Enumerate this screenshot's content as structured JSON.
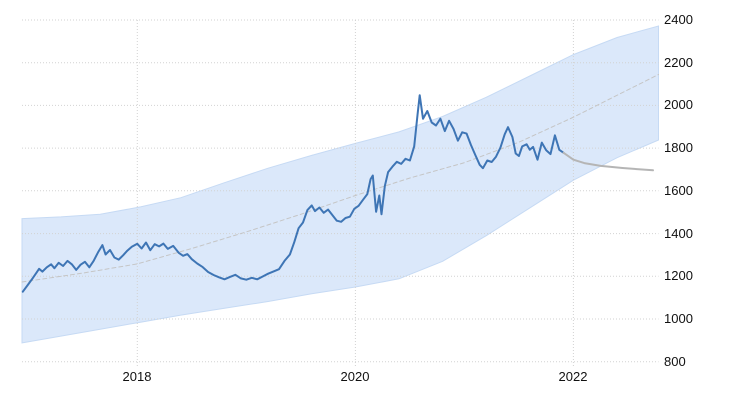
{
  "chart_data": {
    "type": "line",
    "title": "",
    "legend": "none",
    "grid": {
      "visible": true,
      "style": "dotted",
      "color": "#d2d2d2"
    },
    "x_axis": {
      "label": "",
      "range": [
        2016.943,
        2022.78
      ],
      "ticks": [
        2018,
        2020,
        2022
      ],
      "tick_labels": [
        "2018",
        "2020",
        "2022"
      ]
    },
    "y_axis": {
      "label": "",
      "position": "right",
      "range": [
        800,
        2400
      ],
      "ticks": [
        800,
        1000,
        1200,
        1400,
        1600,
        1800,
        2000,
        2200,
        2400
      ],
      "tick_labels": [
        "800",
        "1000",
        "1200",
        "1400",
        "1600",
        "1800",
        "2000",
        "2200",
        "2400"
      ]
    },
    "band": {
      "name": "trend-channel",
      "fill": "#dbe8fa",
      "stroke": "#c6daf4",
      "x": [
        2016.943,
        2017.3,
        2017.66,
        2018.03,
        2018.4,
        2018.8,
        2019.2,
        2019.6,
        2020.0,
        2020.4,
        2020.8,
        2021.2,
        2021.6,
        2022.0,
        2022.4,
        2022.78
      ],
      "top": [
        1470,
        1478,
        1490,
        1525,
        1568,
        1638,
        1706,
        1766,
        1822,
        1876,
        1948,
        2038,
        2138,
        2238,
        2318,
        2372
      ],
      "bottom": [
        888,
        920,
        952,
        985,
        1018,
        1050,
        1082,
        1118,
        1150,
        1188,
        1270,
        1390,
        1520,
        1650,
        1755,
        1838
      ]
    },
    "series": [
      {
        "name": "historical-price",
        "color": "#3e75b5",
        "width": 2,
        "style": "solid",
        "points": [
          [
            2016.95,
            1128
          ],
          [
            2016.99,
            1155
          ],
          [
            2017.03,
            1183
          ],
          [
            2017.07,
            1212
          ],
          [
            2017.1,
            1235
          ],
          [
            2017.13,
            1222
          ],
          [
            2017.17,
            1242
          ],
          [
            2017.21,
            1256
          ],
          [
            2017.24,
            1238
          ],
          [
            2017.28,
            1263
          ],
          [
            2017.32,
            1248
          ],
          [
            2017.36,
            1272
          ],
          [
            2017.4,
            1256
          ],
          [
            2017.44,
            1230
          ],
          [
            2017.48,
            1254
          ],
          [
            2017.52,
            1268
          ],
          [
            2017.56,
            1242
          ],
          [
            2017.6,
            1272
          ],
          [
            2017.64,
            1312
          ],
          [
            2017.68,
            1346
          ],
          [
            2017.71,
            1302
          ],
          [
            2017.75,
            1323
          ],
          [
            2017.79,
            1288
          ],
          [
            2017.83,
            1278
          ],
          [
            2017.87,
            1298
          ],
          [
            2017.91,
            1320
          ],
          [
            2017.95,
            1338
          ],
          [
            2018.0,
            1352
          ],
          [
            2018.04,
            1330
          ],
          [
            2018.08,
            1358
          ],
          [
            2018.12,
            1322
          ],
          [
            2018.16,
            1350
          ],
          [
            2018.2,
            1340
          ],
          [
            2018.24,
            1353
          ],
          [
            2018.28,
            1328
          ],
          [
            2018.33,
            1342
          ],
          [
            2018.38,
            1310
          ],
          [
            2018.42,
            1296
          ],
          [
            2018.46,
            1304
          ],
          [
            2018.5,
            1280
          ],
          [
            2018.55,
            1260
          ],
          [
            2018.6,
            1243
          ],
          [
            2018.65,
            1220
          ],
          [
            2018.7,
            1206
          ],
          [
            2018.75,
            1195
          ],
          [
            2018.8,
            1186
          ],
          [
            2018.85,
            1197
          ],
          [
            2018.9,
            1207
          ],
          [
            2018.95,
            1190
          ],
          [
            2019.0,
            1184
          ],
          [
            2019.05,
            1193
          ],
          [
            2019.1,
            1186
          ],
          [
            2019.15,
            1199
          ],
          [
            2019.2,
            1212
          ],
          [
            2019.25,
            1223
          ],
          [
            2019.3,
            1233
          ],
          [
            2019.35,
            1272
          ],
          [
            2019.4,
            1302
          ],
          [
            2019.44,
            1360
          ],
          [
            2019.48,
            1425
          ],
          [
            2019.52,
            1452
          ],
          [
            2019.56,
            1510
          ],
          [
            2019.6,
            1532
          ],
          [
            2019.63,
            1505
          ],
          [
            2019.67,
            1522
          ],
          [
            2019.71,
            1497
          ],
          [
            2019.75,
            1512
          ],
          [
            2019.79,
            1486
          ],
          [
            2019.83,
            1460
          ],
          [
            2019.87,
            1455
          ],
          [
            2019.91,
            1473
          ],
          [
            2019.95,
            1479
          ],
          [
            2019.99,
            1516
          ],
          [
            2020.03,
            1530
          ],
          [
            2020.07,
            1558
          ],
          [
            2020.11,
            1585
          ],
          [
            2020.14,
            1655
          ],
          [
            2020.16,
            1672
          ],
          [
            2020.19,
            1502
          ],
          [
            2020.22,
            1578
          ],
          [
            2020.24,
            1490
          ],
          [
            2020.27,
            1622
          ],
          [
            2020.3,
            1688
          ],
          [
            2020.34,
            1713
          ],
          [
            2020.38,
            1736
          ],
          [
            2020.42,
            1726
          ],
          [
            2020.46,
            1750
          ],
          [
            2020.5,
            1742
          ],
          [
            2020.54,
            1808
          ],
          [
            2020.57,
            1955
          ],
          [
            2020.59,
            2048
          ],
          [
            2020.62,
            1938
          ],
          [
            2020.66,
            1974
          ],
          [
            2020.7,
            1920
          ],
          [
            2020.74,
            1906
          ],
          [
            2020.78,
            1938
          ],
          [
            2020.82,
            1880
          ],
          [
            2020.86,
            1928
          ],
          [
            2020.9,
            1890
          ],
          [
            2020.94,
            1835
          ],
          [
            2020.98,
            1874
          ],
          [
            2021.02,
            1868
          ],
          [
            2021.06,
            1815
          ],
          [
            2021.1,
            1768
          ],
          [
            2021.14,
            1722
          ],
          [
            2021.17,
            1706
          ],
          [
            2021.21,
            1742
          ],
          [
            2021.25,
            1735
          ],
          [
            2021.29,
            1760
          ],
          [
            2021.33,
            1802
          ],
          [
            2021.37,
            1865
          ],
          [
            2021.4,
            1898
          ],
          [
            2021.44,
            1852
          ],
          [
            2021.47,
            1775
          ],
          [
            2021.5,
            1763
          ],
          [
            2021.53,
            1808
          ],
          [
            2021.57,
            1818
          ],
          [
            2021.6,
            1792
          ],
          [
            2021.63,
            1806
          ],
          [
            2021.67,
            1746
          ],
          [
            2021.71,
            1826
          ],
          [
            2021.75,
            1790
          ],
          [
            2021.79,
            1772
          ],
          [
            2021.83,
            1860
          ],
          [
            2021.87,
            1792
          ],
          [
            2021.91,
            1778
          ]
        ]
      },
      {
        "name": "forecast",
        "color": "#b5b5b5",
        "width": 2,
        "style": "solid",
        "points": [
          [
            2021.91,
            1778
          ],
          [
            2022.0,
            1746
          ],
          [
            2022.1,
            1730
          ],
          [
            2022.25,
            1717
          ],
          [
            2022.45,
            1707
          ],
          [
            2022.73,
            1696
          ]
        ]
      },
      {
        "name": "trend-centerline",
        "color": "#c5c5c5",
        "width": 1,
        "style": "dashed",
        "points": [
          [
            2016.943,
            1173
          ],
          [
            2017.5,
            1215
          ],
          [
            2018.0,
            1258
          ],
          [
            2018.5,
            1330
          ],
          [
            2019.0,
            1408
          ],
          [
            2019.5,
            1490
          ],
          [
            2020.0,
            1578
          ],
          [
            2020.5,
            1660
          ],
          [
            2021.0,
            1732
          ],
          [
            2021.5,
            1828
          ],
          [
            2022.0,
            1945
          ],
          [
            2022.78,
            2145
          ]
        ]
      }
    ]
  }
}
